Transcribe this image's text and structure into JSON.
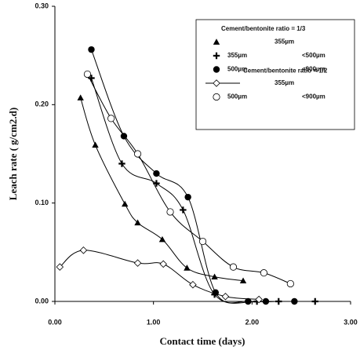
{
  "chart_data": {
    "type": "line-scatter",
    "xlabel": "Contact time (days)",
    "ylabel": "Leach rate ( g/cm2.d)",
    "xlim": [
      0,
      3
    ],
    "ylim": [
      0,
      0.3
    ],
    "xticks": [
      {
        "value": 0,
        "label": "0.00"
      },
      {
        "value": 1,
        "label": "1.00"
      },
      {
        "value": 2,
        "label": "2.00"
      },
      {
        "value": 3,
        "label": "3.00"
      }
    ],
    "yticks": [
      {
        "value": 0,
        "label": "0.00"
      },
      {
        "value": 0.1,
        "label": "0.10"
      },
      {
        "value": 0.2,
        "label": "0.20"
      },
      {
        "value": 0.3,
        "label": "0.30"
      }
    ],
    "groups": [
      {
        "title": "Cement/bentonite ratio = 1/3",
        "series": [
          {
            "name": "355µm",
            "marker": "triangle",
            "color": "#000000",
            "x": [
              0.26,
              0.41,
              0.71,
              0.84,
              1.09,
              1.34,
              1.62,
              1.91
            ],
            "values": [
              0.207,
              0.159,
              0.099,
              0.08,
              0.063,
              0.034,
              0.025,
              0.021
            ]
          },
          {
            "name": "355µm",
            "name_max": "<500µm",
            "marker": "plus",
            "color": "#000000",
            "x": [
              0.37,
              0.68,
              1.03,
              1.3,
              1.62,
              2.05,
              2.27,
              2.64
            ],
            "values": [
              0.227,
              0.14,
              0.12,
              0.093,
              0.007,
              0,
              0,
              0
            ]
          },
          {
            "name": "500µm",
            "name_max": "<900µm",
            "marker": "circle-filled",
            "color": "#000000",
            "x": [
              0.37,
              0.7,
              1.03,
              1.35,
              1.63,
              1.96,
              2.14,
              2.43
            ],
            "values": [
              0.256,
              0.168,
              0.13,
              0.106,
              0.009,
              0,
              0,
              0
            ]
          }
        ]
      },
      {
        "title": "Cement/bentonite ratio = 1/2",
        "series": [
          {
            "name": "355µm",
            "marker": "diamond-open",
            "color": "#000000",
            "x": [
              0.05,
              0.29,
              0.84,
              1.1,
              1.4,
              1.73,
              2.07
            ],
            "values": [
              0.035,
              0.052,
              0.039,
              0.038,
              0.017,
              0.005,
              0.002
            ]
          },
          {
            "name": "500µm",
            "name_max": "<900µm",
            "marker": "circle-open",
            "color": "#000000",
            "x": [
              0.33,
              0.57,
              0.84,
              1.17,
              1.5,
              1.81,
              2.12,
              2.39
            ],
            "values": [
              0.231,
              0.186,
              0.15,
              0.091,
              0.061,
              0.035,
              0.029,
              0.018
            ]
          }
        ]
      }
    ]
  }
}
